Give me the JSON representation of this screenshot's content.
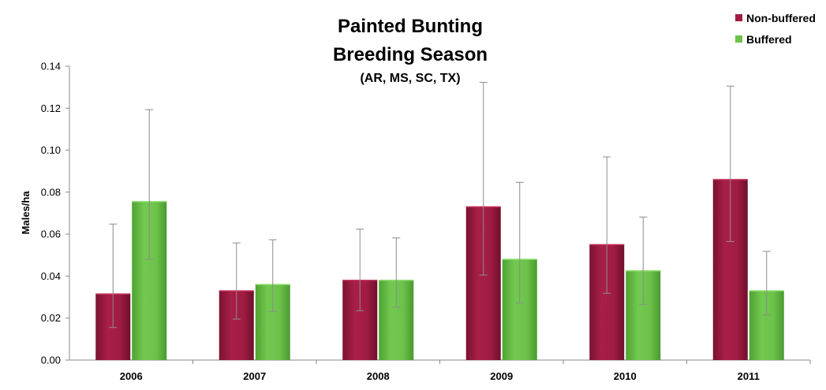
{
  "chart_data": {
    "type": "bar",
    "title": "Painted Bunting",
    "title_line2": "Breeding Season",
    "subtitle": "(AR, MS, SC, TX)",
    "xlabel": "",
    "ylabel": "Males/ha",
    "categories": [
      "2006",
      "2007",
      "2008",
      "2009",
      "2010",
      "2011"
    ],
    "ylim": [
      0,
      0.14
    ],
    "yticks": [
      "0.00",
      "0.02",
      "0.04",
      "0.06",
      "0.08",
      "0.10",
      "0.12",
      "0.14"
    ],
    "grid": false,
    "legend_position": "top-right",
    "series": [
      {
        "name": "Non-buffered",
        "color": "#a01c42",
        "values": [
          0.0315,
          0.033,
          0.038,
          0.073,
          0.055,
          0.086
        ],
        "error_low": [
          0.0155,
          0.0195,
          0.0235,
          0.0405,
          0.0318,
          0.0565
        ],
        "error_high": [
          0.0648,
          0.0558,
          0.0624,
          0.1323,
          0.0968,
          0.1305
        ]
      },
      {
        "name": "Buffered",
        "color": "#6cc24a",
        "values": [
          0.0755,
          0.036,
          0.038,
          0.048,
          0.0425,
          0.033
        ],
        "error_low": [
          0.048,
          0.0232,
          0.0252,
          0.0272,
          0.0265,
          0.0215
        ],
        "error_high": [
          0.1193,
          0.0573,
          0.0582,
          0.0847,
          0.0681,
          0.0518
        ]
      }
    ]
  }
}
